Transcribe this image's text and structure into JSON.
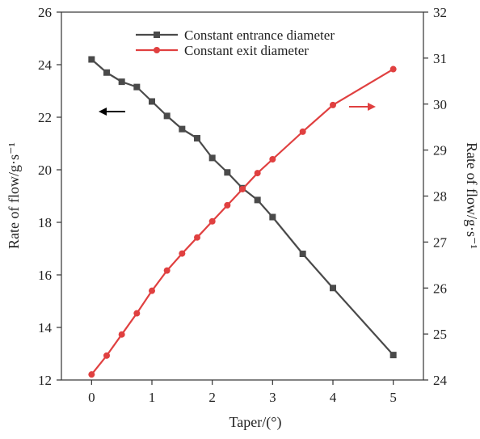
{
  "chart_data": {
    "type": "line",
    "xlabel": "Taper/(°)",
    "ylabel_left": "Rate of flow/g·s⁻¹",
    "ylabel_right": "Rate of flow/g·s⁻¹",
    "xlim": [
      -0.5,
      5.5
    ],
    "ylim_left": [
      12,
      26
    ],
    "ylim_right": [
      24,
      32
    ],
    "x_ticks": [
      "0",
      "1",
      "2",
      "3",
      "4",
      "5"
    ],
    "y_ticks_left": [
      "12",
      "14",
      "16",
      "18",
      "20",
      "22",
      "24",
      "26"
    ],
    "y_ticks_right": [
      "24",
      "25",
      "26",
      "27",
      "28",
      "29",
      "30",
      "31",
      "32"
    ],
    "legend_position": "top-center",
    "grid": false,
    "series": [
      {
        "name": "Constant entrance diameter",
        "axis": "left",
        "color": "#4a4a4a",
        "marker": "square",
        "x": [
          0,
          0.25,
          0.5,
          0.75,
          1.0,
          1.25,
          1.5,
          1.75,
          2.0,
          2.25,
          2.5,
          2.75,
          3.0,
          3.5,
          4.0,
          5.0
        ],
        "y": [
          24.2,
          23.7,
          23.35,
          23.15,
          22.6,
          22.05,
          21.55,
          21.2,
          20.45,
          19.9,
          19.3,
          18.85,
          18.2,
          16.8,
          15.5,
          12.95
        ]
      },
      {
        "name": "Constant exit diameter",
        "axis": "right",
        "color": "#e04040",
        "marker": "circle",
        "x": [
          0,
          0.25,
          0.5,
          0.75,
          1.0,
          1.25,
          1.5,
          1.75,
          2.0,
          2.25,
          2.5,
          2.75,
          3.0,
          3.5,
          4.0,
          5.0
        ],
        "y": [
          24.12,
          24.53,
          24.99,
          25.45,
          25.94,
          26.38,
          26.75,
          27.1,
          27.45,
          27.8,
          28.15,
          28.5,
          28.8,
          29.4,
          29.98,
          30.76
        ]
      }
    ],
    "annotations": [
      {
        "type": "arrow",
        "direction": "left",
        "color": "#000000",
        "meaning": "left-axis"
      },
      {
        "type": "arrow",
        "direction": "right",
        "color": "#e04040",
        "meaning": "right-axis"
      }
    ]
  }
}
